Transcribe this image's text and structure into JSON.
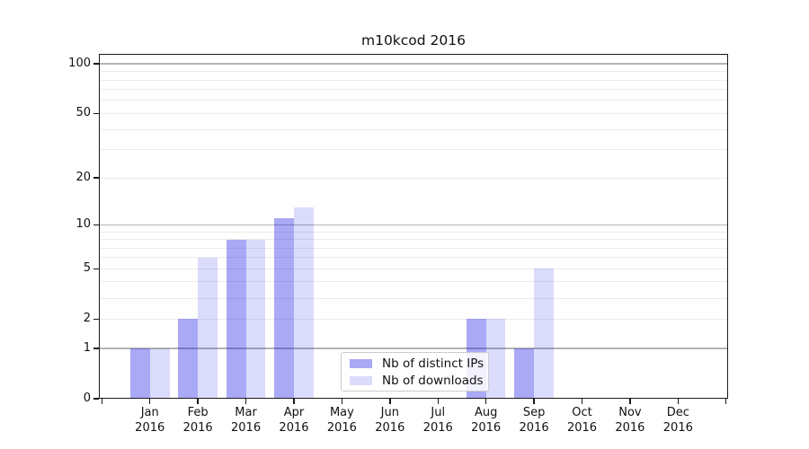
{
  "chart_data": {
    "type": "bar",
    "title": "m10kcod 2016",
    "categories": [
      "Jan",
      "Feb",
      "Mar",
      "Apr",
      "May",
      "Jun",
      "Jul",
      "Aug",
      "Sep",
      "Oct",
      "Nov",
      "Dec"
    ],
    "year_label": "2016",
    "series": [
      {
        "name": "Nb of distinct IPs",
        "color": "rgba(10,10,230,0.35)",
        "values": [
          1,
          2,
          8,
          11,
          0,
          0,
          0,
          2,
          1,
          0,
          0,
          0
        ]
      },
      {
        "name": "Nb of downloads",
        "color": "rgba(10,10,230,0.145)",
        "values": [
          1,
          6,
          8,
          13,
          0,
          0,
          0,
          2,
          5,
          0,
          0,
          0
        ]
      }
    ],
    "y_axis": {
      "scale": "log(1+x)",
      "tick_labels": [
        "0",
        "1",
        "2",
        "5",
        "10",
        "20",
        "50",
        "100"
      ],
      "tick_values": [
        0,
        1,
        2,
        5,
        10,
        20,
        50,
        100
      ],
      "major_grid_values": [
        1,
        10,
        100
      ],
      "minor_grid_values": [
        2,
        3,
        4,
        5,
        6,
        7,
        8,
        9,
        20,
        30,
        40,
        50,
        60,
        70,
        80,
        90
      ],
      "ylim": [
        0,
        115
      ]
    },
    "x_axis": {
      "tick_count": 14
    },
    "legend": {
      "position": "lower center-right"
    },
    "grid": "both",
    "colors": {
      "bar_distinct_ips": "#a9a9f6",
      "bar_downloads": "#dcdcfb",
      "major_grid": "#b4b4b4",
      "minor_grid": "#ebebeb",
      "axis": "#1a1a1a",
      "text": "#111111",
      "background": "#ffffff"
    }
  }
}
